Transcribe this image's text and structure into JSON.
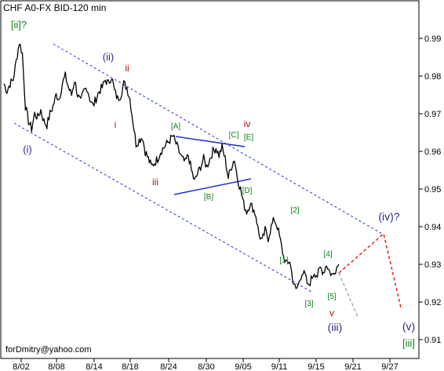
{
  "chart_data": {
    "type": "line",
    "title": "CHF A0-FX BID-120 min",
    "credit": "forDmitry@yahoo.com",
    "xlabel": "",
    "ylabel": "",
    "ylim": [
      0.905,
      1.0
    ],
    "y_ticks": [
      "0.91",
      "0.92",
      "0.93",
      "0.94",
      "0.95",
      "0.96",
      "0.97",
      "0.98",
      "0.99"
    ],
    "x_tick_labels": [
      "8/02",
      "8/08",
      "8/14",
      "8/18",
      "8/24",
      "8/30",
      "9/05",
      "9/11",
      "9/15",
      "9/21",
      "9/27"
    ],
    "grid": false,
    "colors": {
      "price": "#000000",
      "channel": "#2233cc",
      "triangle": "#2233cc",
      "forecast_main": "#ee2222",
      "forecast_alt": "#aaaaaa",
      "wave_intermediate": "#2a2a8a",
      "wave_minor": "#b01010",
      "wave_minute": "#11811a"
    },
    "series": [
      {
        "values": [
          0.978,
          0.976,
          0.978,
          0.979,
          0.984,
          0.989,
          0.986,
          0.972,
          0.968,
          0.966,
          0.97,
          0.969,
          0.971,
          0.968,
          0.967,
          0.97,
          0.972,
          0.975,
          0.974,
          0.978,
          0.98,
          0.977,
          0.975,
          0.979,
          0.975,
          0.973,
          0.976,
          0.977,
          0.974,
          0.972,
          0.974,
          0.976,
          0.977,
          0.979,
          0.978,
          0.98,
          0.976,
          0.974,
          0.975,
          0.978,
          0.977,
          0.974,
          0.968,
          0.962,
          0.963,
          0.964,
          0.96,
          0.958,
          0.956,
          0.957,
          0.958,
          0.96,
          0.961,
          0.962,
          0.963,
          0.964,
          0.962,
          0.96,
          0.958,
          0.957,
          0.959,
          0.955,
          0.952,
          0.954,
          0.956,
          0.958,
          0.956,
          0.958,
          0.96,
          0.961,
          0.959,
          0.961,
          0.958,
          0.953,
          0.956,
          0.958,
          0.953,
          0.95,
          0.946,
          0.944,
          0.946,
          0.945,
          0.943,
          0.938,
          0.936,
          0.939,
          0.937,
          0.94,
          0.942,
          0.94,
          0.936,
          0.932,
          0.93,
          0.931,
          0.926,
          0.923,
          0.925,
          0.928,
          0.927,
          0.924,
          0.926,
          0.928,
          0.927,
          0.929,
          0.928,
          0.93,
          0.928,
          0.927,
          0.929,
          0.93
        ]
      }
    ],
    "wave_labels": [
      {
        "text": "[ii]?",
        "group": "minute"
      },
      {
        "text": "(ii)",
        "group": "intermediate"
      },
      {
        "text": "ii",
        "group": "minor"
      },
      {
        "text": "i",
        "group": "minor"
      },
      {
        "text": "(i)",
        "group": "intermediate"
      },
      {
        "text": "[A]",
        "group": "minute"
      },
      {
        "text": "iii",
        "group": "minor"
      },
      {
        "text": "[B]",
        "group": "minute"
      },
      {
        "text": "[C]",
        "group": "minute"
      },
      {
        "text": "iv",
        "group": "minor"
      },
      {
        "text": "[E]",
        "group": "minute"
      },
      {
        "text": "[D]",
        "group": "minute"
      },
      {
        "text": "[2]",
        "group": "minute"
      },
      {
        "text": "[1]",
        "group": "minute"
      },
      {
        "text": "[4]",
        "group": "minute"
      },
      {
        "text": "[3]",
        "group": "minute"
      },
      {
        "text": "[5]",
        "group": "minute"
      },
      {
        "text": "v",
        "group": "minor"
      },
      {
        "text": "(iii)",
        "group": "intermediate"
      },
      {
        "text": "(iv)?",
        "group": "intermediate"
      },
      {
        "text": "(v)",
        "group": "intermediate"
      },
      {
        "text": "[iii]",
        "group": "minute"
      }
    ]
  }
}
